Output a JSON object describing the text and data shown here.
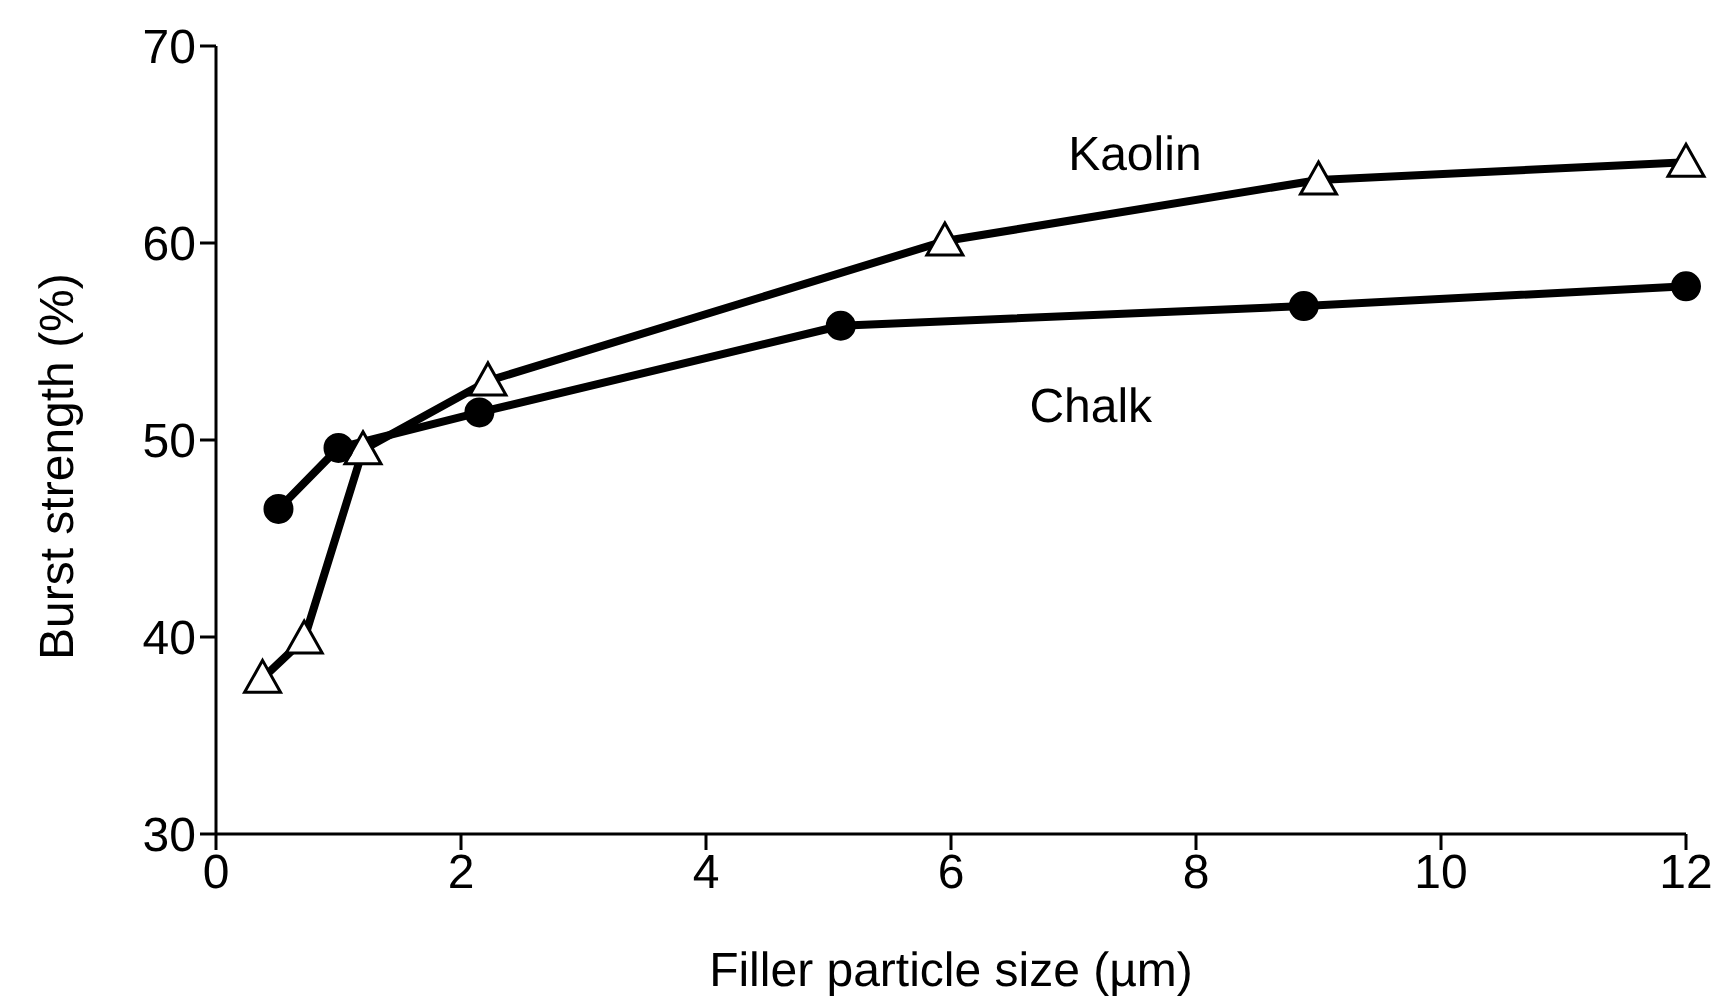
{
  "chart_data": {
    "type": "line",
    "xlabel": "Filler particle size (µm)",
    "ylabel": "Burst strength  (%)",
    "xlim": [
      0,
      12
    ],
    "xticks": [
      0,
      2,
      4,
      6,
      8,
      10,
      12
    ],
    "ylim": [
      30,
      70
    ],
    "yticks": [
      30,
      40,
      50,
      60,
      70
    ],
    "grid": false,
    "legend": false,
    "line_style": "solid",
    "series": [
      {
        "name": "Kaolin",
        "color": "#000000",
        "marker": "triangle",
        "x": [
          0.38,
          0.72,
          1.2,
          2.22,
          5.95,
          9.0,
          12
        ],
        "values": [
          37.9,
          39.9,
          49.5,
          53.0,
          60.1,
          63.2,
          64.1
        ]
      },
      {
        "name": "Chalk",
        "color": "#000000",
        "marker": "circle",
        "x": [
          0.51,
          1.0,
          2.15,
          5.1,
          8.88,
          12
        ],
        "values": [
          46.5,
          49.6,
          51.4,
          55.8,
          56.8,
          57.8
        ]
      }
    ]
  }
}
